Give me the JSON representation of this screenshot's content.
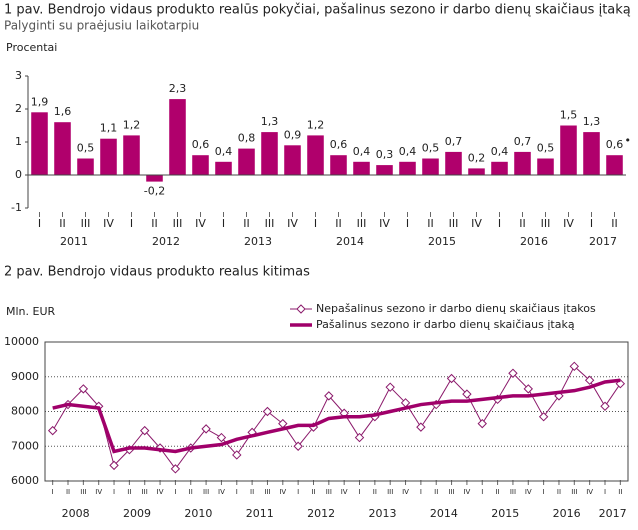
{
  "chart_data": [
    {
      "type": "bar",
      "title": "1 pav. Bendrojo vidaus produkto realūs pokyčiai, pašalinus sezono ir darbo dienų skaičiaus įtaką",
      "subtitle": "Palyginti su praėjusiu laikotarpiu",
      "y_label": "Procentai",
      "categories": [
        "I",
        "II",
        "III",
        "IV",
        "I",
        "II",
        "III",
        "IV",
        "I",
        "II",
        "III",
        "IV",
        "I",
        "II",
        "III",
        "IV",
        "I",
        "II",
        "III",
        "IV",
        "I",
        "II",
        "III",
        "IV",
        "I",
        "II"
      ],
      "years": [
        "2011",
        "2012",
        "2013",
        "2014",
        "2015",
        "2016",
        "2017"
      ],
      "values": [
        1.9,
        1.6,
        0.5,
        1.1,
        1.2,
        -0.2,
        2.3,
        0.6,
        0.4,
        0.8,
        1.3,
        0.9,
        1.2,
        0.6,
        0.4,
        0.3,
        0.4,
        0.5,
        0.7,
        0.2,
        0.4,
        0.7,
        0.5,
        1.5,
        1.3,
        0.6
      ],
      "value_labels": [
        "1,9",
        "1,6",
        "0,5",
        "1,1",
        "1,2",
        "-0,2",
        "2,3",
        "0,6",
        "0,4",
        "0,8",
        "1,3",
        "0,9",
        "1,2",
        "0,6",
        "0,4",
        "0,3",
        "0,4",
        "0,5",
        "0,7",
        "0,2",
        "0,4",
        "0,7",
        "0,5",
        "1,5",
        "1,3",
        "0,6"
      ],
      "annotation": "•",
      "color": "#b0006c",
      "ylim": [
        -1,
        3
      ],
      "yticks": [
        -1,
        0,
        1,
        2,
        3
      ],
      "grid": false
    },
    {
      "type": "line",
      "title": "2 pav. Bendrojo vidaus produkto realus kitimas",
      "y_label": "Mln. EUR",
      "categories": [
        "I",
        "II",
        "III",
        "IV",
        "I",
        "II",
        "III",
        "IV",
        "I",
        "II",
        "III",
        "IV",
        "I",
        "II",
        "III",
        "IV",
        "I",
        "II",
        "III",
        "IV",
        "I",
        "II",
        "III",
        "IV",
        "I",
        "II",
        "III",
        "IV",
        "I",
        "II",
        "III",
        "IV",
        "I",
        "II",
        "III",
        "IV",
        "I",
        "II"
      ],
      "years": [
        "2008",
        "2009",
        "2010",
        "2011",
        "2012",
        "2013",
        "2014",
        "2015",
        "2016",
        "2017"
      ],
      "series": [
        {
          "name": "Nepašalinus sezono ir darbo dienų skaičiaus įtakos",
          "color": "#8b1a6b",
          "values": [
            7450,
            8200,
            8650,
            8150,
            6450,
            6900,
            7450,
            6950,
            6350,
            6950,
            7500,
            7250,
            6750,
            7400,
            8000,
            7650,
            7000,
            7550,
            8450,
            7950,
            7250,
            7850,
            8700,
            8250,
            7550,
            8200,
            8950,
            8500,
            7650,
            8350,
            9100,
            8650,
            7850,
            8450,
            9300,
            8900,
            8150,
            8800
          ]
        },
        {
          "name": "Pašalinus sezono ir darbo dienų skaičiaus įtaką",
          "color": "#a0006a",
          "values": [
            8100,
            8200,
            8150,
            8100,
            6850,
            6950,
            6950,
            6900,
            6850,
            6950,
            7000,
            7050,
            7200,
            7300,
            7400,
            7500,
            7600,
            7600,
            7800,
            7850,
            7850,
            7900,
            8000,
            8100,
            8200,
            8250,
            8300,
            8300,
            8350,
            8400,
            8450,
            8450,
            8500,
            8550,
            8600,
            8700,
            8850,
            8900
          ]
        }
      ],
      "ylim": [
        6000,
        10000
      ],
      "yticks": [
        6000,
        7000,
        8000,
        9000,
        10000
      ],
      "grid": true,
      "legend": "top"
    }
  ]
}
